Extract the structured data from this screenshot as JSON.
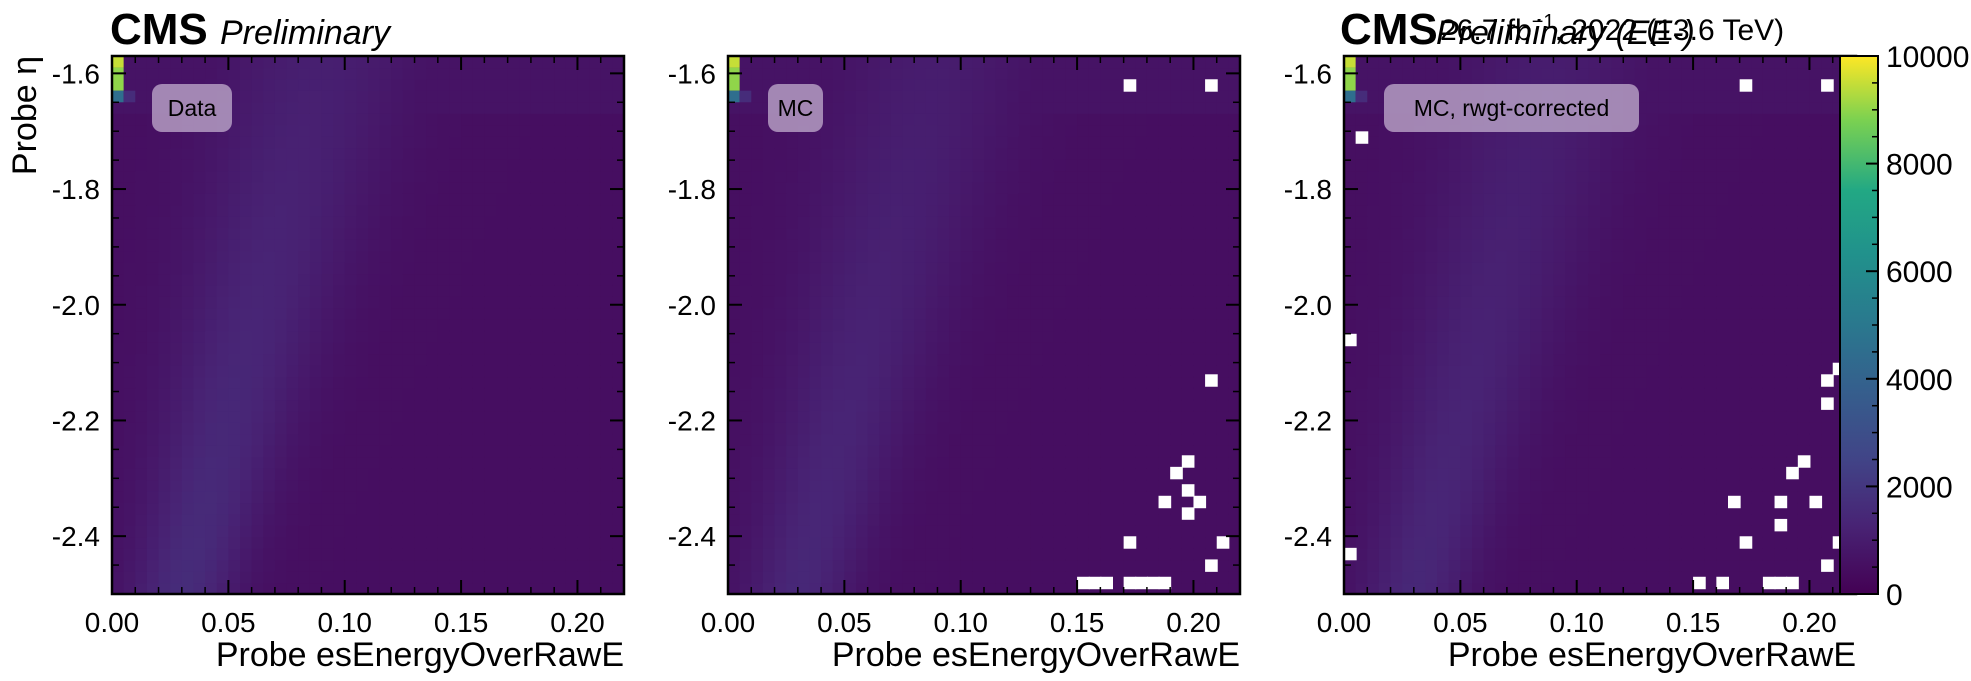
{
  "header": {
    "left": {
      "brand": "CMS",
      "tag": "Preliminary"
    },
    "right": {
      "brand": "CMS",
      "tag": "Preliminary (EE-)",
      "lumi": "26.7 fb",
      "lumi_sup": "−1",
      "lumi_tail": ", 2022 (13.6 TeV)"
    }
  },
  "chart_data": {
    "type": "heatmap",
    "panels": [
      {
        "label": "Data",
        "xlabel": "Probe esEnergyOverRawE",
        "ylabel": "Probe η"
      },
      {
        "label": "MC",
        "xlabel": "Probe esEnergyOverRawE",
        "ylabel": ""
      },
      {
        "label": "MC, rwgt-corrected",
        "xlabel": "Probe esEnergyOverRawE",
        "ylabel": ""
      }
    ],
    "x_range": [
      0.0,
      0.22
    ],
    "y_range": [
      -2.5,
      -1.57
    ],
    "x_ticks": [
      0.0,
      0.05,
      0.1,
      0.15,
      0.2
    ],
    "x_tick_labels": [
      "0.00",
      "0.05",
      "0.10",
      "0.15",
      "0.20"
    ],
    "y_ticks": [
      -1.6,
      -1.8,
      -2.0,
      -2.2,
      -2.4
    ],
    "y_tick_labels": [
      "-1.6",
      "-1.8",
      "-2.0",
      "-2.2",
      "-2.4"
    ],
    "bins": {
      "nx": 44,
      "ny": 47
    },
    "colormap": "viridis",
    "colorbar": {
      "range": [
        0,
        10000
      ],
      "ticks": [
        0,
        2000,
        4000,
        6000,
        8000,
        10000
      ],
      "tick_labels": [
        "0",
        "2000",
        "4000",
        "6000",
        "8000",
        "10000"
      ]
    },
    "hotspot": [
      {
        "x": [
          0.0,
          0.005
        ],
        "y": [
          -1.59,
          -1.57
        ],
        "value": 9500
      },
      {
        "x": [
          0.0,
          0.005
        ],
        "y": [
          -1.63,
          -1.59
        ],
        "value": 9000
      },
      {
        "x": [
          0.0,
          0.005
        ],
        "y": [
          -1.65,
          -1.63
        ],
        "value": 4500
      },
      {
        "x": [
          0.005,
          0.01
        ],
        "y": [
          -1.65,
          -1.63
        ],
        "value": 1600
      }
    ],
    "band": {
      "x_center_at_y_low": 0.03,
      "x_center_at_y_high": 0.09,
      "peak_value": 1600,
      "background_value": 500
    },
    "empty_bins": [
      [],
      [
        [
          0.17,
          -1.63
        ],
        [
          0.205,
          -1.63
        ],
        [
          0.205,
          -2.14
        ],
        [
          0.195,
          -2.28
        ],
        [
          0.19,
          -2.3
        ],
        [
          0.195,
          -2.33
        ],
        [
          0.185,
          -2.35
        ],
        [
          0.2,
          -2.35
        ],
        [
          0.195,
          -2.37
        ],
        [
          0.21,
          -2.42
        ],
        [
          0.17,
          -2.42
        ],
        [
          0.205,
          -2.46
        ],
        [
          0.15,
          -2.49
        ],
        [
          0.155,
          -2.49
        ],
        [
          0.16,
          -2.49
        ],
        [
          0.17,
          -2.49
        ],
        [
          0.175,
          -2.49
        ],
        [
          0.18,
          -2.49
        ],
        [
          0.185,
          -2.49
        ]
      ],
      [
        [
          0.17,
          -1.63
        ],
        [
          0.205,
          -1.63
        ],
        [
          0.005,
          -1.72
        ],
        [
          0.0,
          -2.07
        ],
        [
          0.21,
          -2.12
        ],
        [
          0.205,
          -2.14
        ],
        [
          0.205,
          -2.18
        ],
        [
          0.195,
          -2.28
        ],
        [
          0.19,
          -2.3
        ],
        [
          0.185,
          -2.35
        ],
        [
          0.2,
          -2.35
        ],
        [
          0.165,
          -2.35
        ],
        [
          0.185,
          -2.39
        ],
        [
          0.21,
          -2.42
        ],
        [
          0.17,
          -2.42
        ],
        [
          0.215,
          -2.44
        ],
        [
          0.0,
          -2.44
        ],
        [
          0.205,
          -2.46
        ],
        [
          0.15,
          -2.49
        ],
        [
          0.16,
          -2.49
        ],
        [
          0.18,
          -2.49
        ],
        [
          0.185,
          -2.49
        ],
        [
          0.19,
          -2.49
        ]
      ]
    ]
  }
}
